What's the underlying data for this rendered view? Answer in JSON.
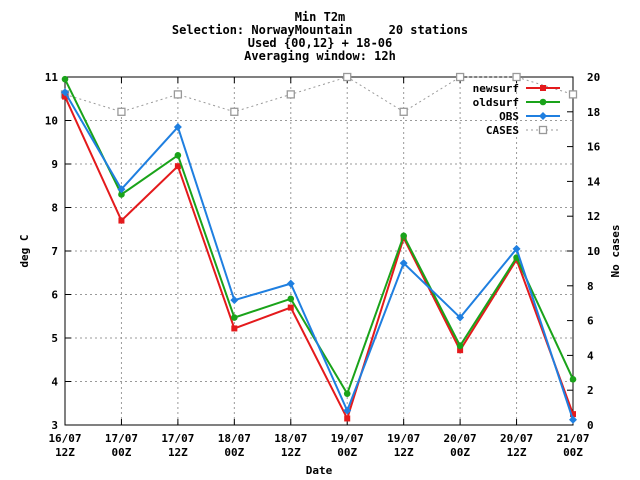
{
  "title_lines": [
    "Min T2m",
    "Selection: NorwayMountain     20 stations",
    "Used {00,12} + 18-06",
    "Averaging window: 12h"
  ],
  "chart_data": {
    "type": "line",
    "xlabel": "Date",
    "ylabel": "deg C",
    "y2label": "No cases",
    "ylim": [
      3,
      11
    ],
    "y2lim": [
      0,
      20
    ],
    "yticks": [
      3,
      4,
      5,
      6,
      7,
      8,
      9,
      10,
      11
    ],
    "y2ticks": [
      0,
      2,
      4,
      6,
      8,
      10,
      12,
      14,
      16,
      18,
      20
    ],
    "grid": true,
    "legend_position": "top-right",
    "categories": [
      [
        "16/07",
        "12Z"
      ],
      [
        "17/07",
        "00Z"
      ],
      [
        "17/07",
        "12Z"
      ],
      [
        "18/07",
        "00Z"
      ],
      [
        "18/07",
        "12Z"
      ],
      [
        "19/07",
        "00Z"
      ],
      [
        "19/07",
        "12Z"
      ],
      [
        "20/07",
        "00Z"
      ],
      [
        "20/07",
        "12Z"
      ],
      [
        "21/07",
        "00Z"
      ]
    ],
    "series": [
      {
        "name": "newsurf",
        "axis": "left",
        "color": "#e41a1c",
        "marker": "square-filled",
        "values": [
          10.55,
          7.7,
          8.95,
          5.22,
          5.7,
          3.15,
          7.3,
          4.72,
          6.8,
          3.25
        ]
      },
      {
        "name": "oldsurf",
        "axis": "left",
        "color": "#1aa31a",
        "marker": "circle-filled",
        "values": [
          10.95,
          8.3,
          9.2,
          5.47,
          5.9,
          3.72,
          7.35,
          4.82,
          6.85,
          4.05
        ]
      },
      {
        "name": "OBS",
        "axis": "left",
        "color": "#1f7fe0",
        "marker": "diamond-filled",
        "values": [
          10.65,
          8.42,
          9.85,
          5.87,
          6.25,
          3.33,
          6.72,
          5.47,
          7.05,
          3.12
        ]
      },
      {
        "name": "CASES",
        "axis": "right",
        "color": "#999999",
        "marker": "square-open",
        "dashed": true,
        "values": [
          19,
          18,
          19,
          18,
          19,
          20,
          18,
          20,
          20,
          19
        ]
      }
    ]
  }
}
